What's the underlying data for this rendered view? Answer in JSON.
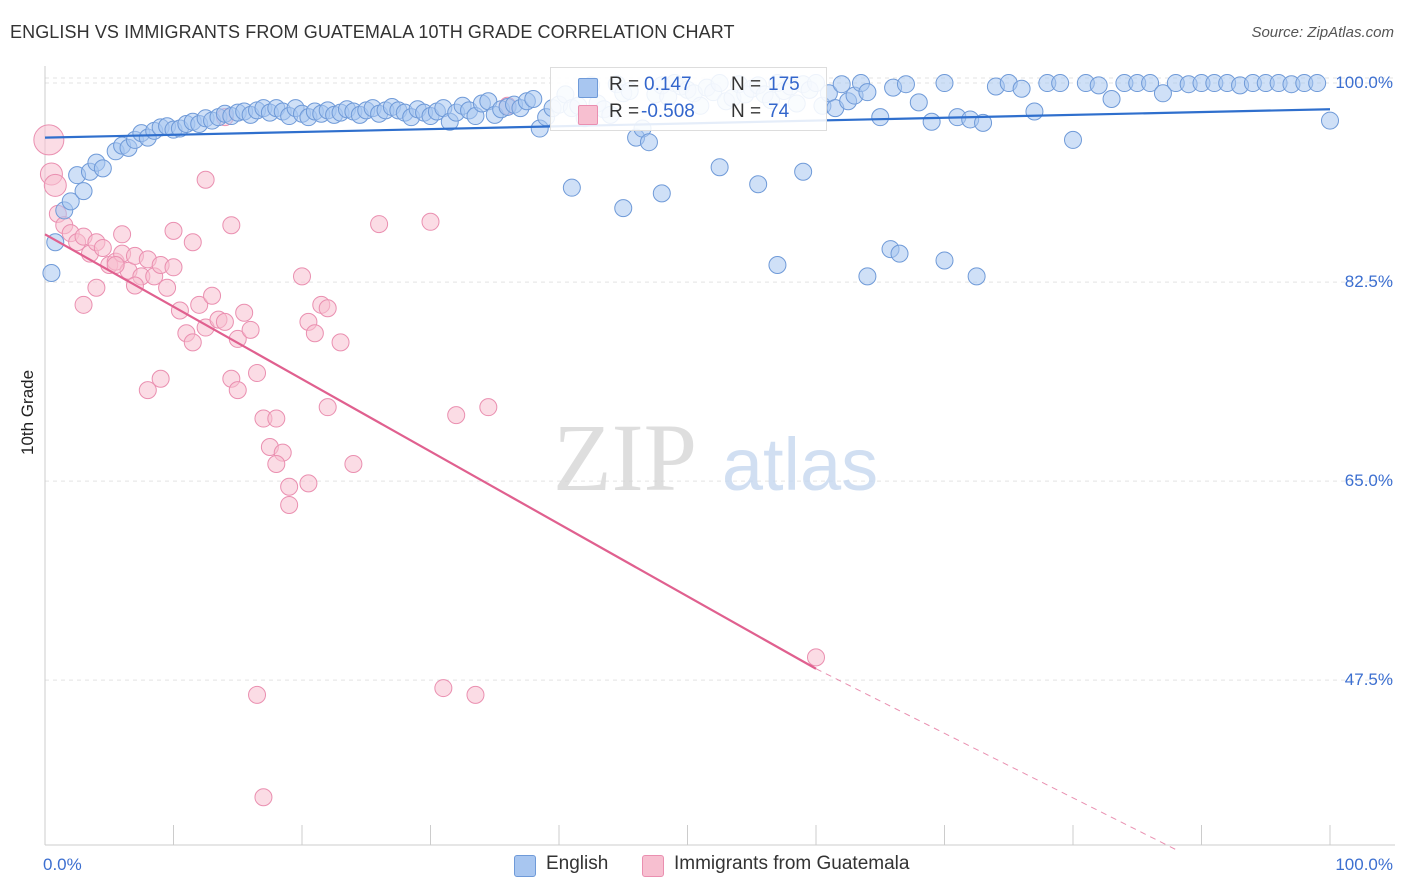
{
  "title": "ENGLISH VS IMMIGRANTS FROM GUATEMALA 10TH GRADE CORRELATION CHART",
  "source": "Source: ZipAtlas.com",
  "watermark": {
    "zip": "ZIP",
    "atlas": "atlas"
  },
  "legend_box": {
    "rows": [
      {
        "r_label": "R =",
        "r_value": "0.147",
        "n_label": "N =",
        "n_value": "175"
      },
      {
        "r_label": "R =",
        "r_value": "-0.508",
        "n_label": "N =",
        "n_value": "74"
      }
    ]
  },
  "bottom_legend": {
    "english": "English",
    "guatemala": "Immigrants from Guatemala"
  },
  "colors": {
    "english_fill": "#a8c6f0",
    "english_stroke": "#6f9ad8",
    "english_line": "#2f6fcd",
    "guat_fill": "#f7bfd0",
    "guat_stroke": "#ea8fb0",
    "guat_line": "#e0608f",
    "axis_text": "#3c6fd0",
    "grid": "#e3e3e3"
  },
  "chart_data": {
    "type": "scatter",
    "title": "ENGLISH VS IMMIGRANTS FROM GUATEMALA 10TH GRADE CORRELATION CHART",
    "xlabel": "",
    "ylabel": "10th Grade",
    "xlim": [
      0,
      100
    ],
    "ylim": [
      33,
      101.5
    ],
    "x_tick_labels": [
      "0.0%",
      "100.0%"
    ],
    "y_ticks": [
      47.5,
      65.0,
      82.5,
      100.0
    ],
    "y_tick_labels": [
      "47.5%",
      "65.0%",
      "82.5%",
      "100.0%"
    ],
    "grid": true,
    "legend_position": "top-center",
    "series": [
      {
        "name": "English",
        "R": 0.147,
        "N": 175,
        "trend": {
          "x0": 0,
          "y0": 95.2,
          "x1": 100,
          "y1": 97.7
        },
        "points": [
          [
            0.5,
            83.3
          ],
          [
            0.8,
            86.0
          ],
          [
            1.5,
            88.8
          ],
          [
            2.0,
            89.6
          ],
          [
            2.5,
            91.9
          ],
          [
            3.0,
            90.5
          ],
          [
            3.5,
            92.2
          ],
          [
            4.0,
            93.0
          ],
          [
            4.5,
            92.5
          ],
          [
            5.5,
            94.0
          ],
          [
            6.0,
            94.5
          ],
          [
            6.5,
            94.3
          ],
          [
            7.0,
            95.0
          ],
          [
            7.5,
            95.6
          ],
          [
            8.0,
            95.2
          ],
          [
            8.5,
            95.8
          ],
          [
            9.0,
            96.1
          ],
          [
            9.5,
            96.2
          ],
          [
            10.0,
            95.9
          ],
          [
            10.5,
            96.0
          ],
          [
            11.0,
            96.4
          ],
          [
            11.5,
            96.6
          ],
          [
            12.0,
            96.4
          ],
          [
            12.5,
            96.9
          ],
          [
            13.0,
            96.7
          ],
          [
            13.5,
            97.0
          ],
          [
            14.0,
            97.3
          ],
          [
            14.5,
            97.1
          ],
          [
            15.0,
            97.4
          ],
          [
            15.5,
            97.5
          ],
          [
            16.0,
            97.2
          ],
          [
            16.5,
            97.6
          ],
          [
            17.0,
            97.8
          ],
          [
            17.5,
            97.4
          ],
          [
            18.0,
            97.8
          ],
          [
            18.5,
            97.5
          ],
          [
            19.0,
            97.1
          ],
          [
            19.5,
            97.8
          ],
          [
            20.0,
            97.3
          ],
          [
            20.5,
            97.0
          ],
          [
            21.0,
            97.5
          ],
          [
            21.5,
            97.3
          ],
          [
            22.0,
            97.6
          ],
          [
            22.5,
            97.2
          ],
          [
            23.0,
            97.4
          ],
          [
            23.5,
            97.7
          ],
          [
            24.0,
            97.5
          ],
          [
            24.5,
            97.2
          ],
          [
            25.0,
            97.6
          ],
          [
            25.5,
            97.8
          ],
          [
            26.0,
            97.3
          ],
          [
            26.5,
            97.6
          ],
          [
            27.0,
            97.9
          ],
          [
            27.5,
            97.6
          ],
          [
            28.0,
            97.4
          ],
          [
            28.5,
            97.0
          ],
          [
            29.0,
            97.7
          ],
          [
            29.5,
            97.4
          ],
          [
            30.0,
            97.1
          ],
          [
            30.5,
            97.5
          ],
          [
            31.0,
            97.8
          ],
          [
            31.5,
            96.6
          ],
          [
            32.0,
            97.4
          ],
          [
            32.5,
            98.0
          ],
          [
            33.0,
            97.6
          ],
          [
            33.5,
            97.1
          ],
          [
            34.0,
            98.2
          ],
          [
            34.5,
            98.4
          ],
          [
            35.0,
            97.2
          ],
          [
            35.5,
            97.7
          ],
          [
            36.0,
            97.9
          ],
          [
            36.5,
            98.1
          ],
          [
            37.0,
            97.8
          ],
          [
            37.5,
            98.4
          ],
          [
            38.0,
            98.6
          ],
          [
            38.5,
            96.0
          ],
          [
            39.0,
            97.0
          ],
          [
            39.5,
            97.8
          ],
          [
            40.0,
            98.1
          ],
          [
            40.5,
            99.0
          ],
          [
            41.0,
            97.8
          ],
          [
            41.5,
            98.0
          ],
          [
            42.0,
            96.9
          ],
          [
            42.5,
            99.8
          ],
          [
            43.0,
            98.2
          ],
          [
            43.5,
            97.7
          ],
          [
            44.0,
            97.2
          ],
          [
            44.5,
            99.9
          ],
          [
            45.0,
            99.1
          ],
          [
            45.5,
            99.3
          ],
          [
            46.0,
            95.2
          ],
          [
            46.5,
            96.0
          ],
          [
            47.0,
            94.8
          ],
          [
            47.5,
            99.0
          ],
          [
            48.0,
            99.8
          ],
          [
            48.5,
            98.8
          ],
          [
            49.0,
            100.0
          ],
          [
            49.5,
            99.7
          ],
          [
            50.0,
            99.4
          ],
          [
            50.5,
            99.1
          ],
          [
            51.0,
            98.0
          ],
          [
            51.5,
            99.6
          ],
          [
            52.0,
            99.2
          ],
          [
            52.5,
            100.0
          ],
          [
            53.0,
            98.4
          ],
          [
            53.5,
            98.7
          ],
          [
            54.0,
            99.9
          ],
          [
            54.5,
            99.0
          ],
          [
            55.0,
            99.5
          ],
          [
            55.5,
            99.8
          ],
          [
            56.0,
            99.0
          ],
          [
            56.5,
            98.5
          ],
          [
            57.0,
            100.0
          ],
          [
            57.5,
            99.3
          ],
          [
            58.0,
            99.7
          ],
          [
            58.5,
            98.2
          ],
          [
            59.0,
            99.9
          ],
          [
            59.5,
            99.4
          ],
          [
            60.0,
            100.0
          ],
          [
            60.5,
            98.0
          ],
          [
            61.0,
            99.1
          ],
          [
            61.5,
            97.8
          ],
          [
            62.0,
            99.9
          ],
          [
            62.5,
            98.4
          ],
          [
            63.0,
            98.9
          ],
          [
            63.5,
            100.0
          ],
          [
            64.0,
            99.2
          ],
          [
            65.0,
            97.0
          ],
          [
            66.0,
            99.6
          ],
          [
            67.0,
            99.9
          ],
          [
            68.0,
            98.3
          ],
          [
            69.0,
            96.6
          ],
          [
            70.0,
            100.0
          ],
          [
            71.0,
            97.0
          ],
          [
            72.0,
            96.8
          ],
          [
            73.0,
            96.5
          ],
          [
            74.0,
            99.7
          ],
          [
            75.0,
            100.0
          ],
          [
            76.0,
            99.5
          ],
          [
            77.0,
            97.5
          ],
          [
            78.0,
            100.0
          ],
          [
            79.0,
            100.0
          ],
          [
            80.0,
            95.0
          ],
          [
            81.0,
            100.0
          ],
          [
            82.0,
            99.8
          ],
          [
            83.0,
            98.6
          ],
          [
            84.0,
            100.0
          ],
          [
            85.0,
            100.0
          ],
          [
            86.0,
            100.0
          ],
          [
            87.0,
            99.1
          ],
          [
            88.0,
            100.0
          ],
          [
            89.0,
            99.9
          ],
          [
            90.0,
            100.0
          ],
          [
            91.0,
            100.0
          ],
          [
            92.0,
            100.0
          ],
          [
            93.0,
            99.8
          ],
          [
            94.0,
            100.0
          ],
          [
            95.0,
            100.0
          ],
          [
            96.0,
            100.0
          ],
          [
            97.0,
            99.9
          ],
          [
            98.0,
            100.0
          ],
          [
            99.0,
            100.0
          ],
          [
            100.0,
            96.7
          ],
          [
            41.0,
            90.8
          ],
          [
            45.0,
            89.0
          ],
          [
            48.0,
            90.3
          ],
          [
            52.5,
            92.6
          ],
          [
            55.5,
            91.1
          ],
          [
            59.0,
            92.2
          ],
          [
            64.0,
            83.0
          ],
          [
            65.8,
            85.4
          ],
          [
            66.5,
            85.0
          ],
          [
            70.0,
            84.4
          ],
          [
            72.5,
            83.0
          ],
          [
            57.0,
            84.0
          ]
        ]
      },
      {
        "name": "Immigrants from Guatemala",
        "R": -0.508,
        "N": 74,
        "trend": {
          "x0": 0,
          "y0": 86.7,
          "x1": 60,
          "y1": 48.5
        },
        "trend_dashed": {
          "x0": 60,
          "y0": 48.5,
          "x1": 88,
          "y1": 32.6
        },
        "points": [
          [
            0.3,
            95.0
          ],
          [
            0.5,
            92.0
          ],
          [
            0.8,
            91.0
          ],
          [
            1.0,
            88.5
          ],
          [
            1.5,
            87.5
          ],
          [
            2.0,
            86.8
          ],
          [
            2.5,
            86.0
          ],
          [
            3.0,
            86.5
          ],
          [
            3.5,
            85.0
          ],
          [
            4.0,
            86.0
          ],
          [
            4.5,
            85.5
          ],
          [
            5.0,
            84.0
          ],
          [
            5.5,
            84.3
          ],
          [
            6.0,
            85.0
          ],
          [
            6.5,
            83.5
          ],
          [
            7.0,
            84.8
          ],
          [
            7.5,
            83.0
          ],
          [
            8.0,
            84.5
          ],
          [
            8.5,
            83.0
          ],
          [
            9.0,
            84.0
          ],
          [
            9.5,
            82.0
          ],
          [
            10.0,
            83.8
          ],
          [
            10.5,
            80.0
          ],
          [
            11.0,
            78.0
          ],
          [
            11.5,
            77.2
          ],
          [
            12.0,
            80.5
          ],
          [
            12.5,
            78.5
          ],
          [
            13.0,
            81.3
          ],
          [
            13.5,
            79.2
          ],
          [
            14.0,
            79.0
          ],
          [
            14.5,
            74.0
          ],
          [
            15.0,
            77.5
          ],
          [
            15.5,
            79.8
          ],
          [
            16.0,
            78.3
          ],
          [
            16.5,
            74.5
          ],
          [
            17.0,
            70.5
          ],
          [
            17.5,
            68.0
          ],
          [
            18.0,
            70.5
          ],
          [
            18.5,
            67.5
          ],
          [
            19.0,
            62.9
          ],
          [
            20.0,
            83.0
          ],
          [
            20.5,
            79.0
          ],
          [
            21.0,
            78.0
          ],
          [
            21.5,
            80.5
          ],
          [
            22.0,
            80.2
          ],
          [
            23.0,
            77.2
          ],
          [
            3.0,
            80.5
          ],
          [
            4.0,
            82.0
          ],
          [
            5.5,
            84.0
          ],
          [
            6.0,
            86.7
          ],
          [
            7.0,
            82.2
          ],
          [
            8.0,
            73.0
          ],
          [
            9.0,
            74.0
          ],
          [
            10.0,
            87.0
          ],
          [
            11.5,
            86.0
          ],
          [
            12.5,
            91.5
          ],
          [
            14.0,
            97.0
          ],
          [
            14.5,
            87.5
          ],
          [
            15.0,
            73.0
          ],
          [
            16.5,
            46.2
          ],
          [
            17.0,
            37.2
          ],
          [
            18.0,
            66.5
          ],
          [
            19.0,
            64.5
          ],
          [
            20.5,
            64.8
          ],
          [
            22.0,
            71.5
          ],
          [
            24.0,
            66.5
          ],
          [
            26.0,
            87.6
          ],
          [
            30.0,
            87.8
          ],
          [
            31.0,
            46.8
          ],
          [
            32.0,
            70.8
          ],
          [
            33.5,
            46.2
          ],
          [
            34.5,
            71.5
          ],
          [
            36.0,
            98.0
          ],
          [
            60.0,
            49.5
          ]
        ]
      }
    ]
  }
}
